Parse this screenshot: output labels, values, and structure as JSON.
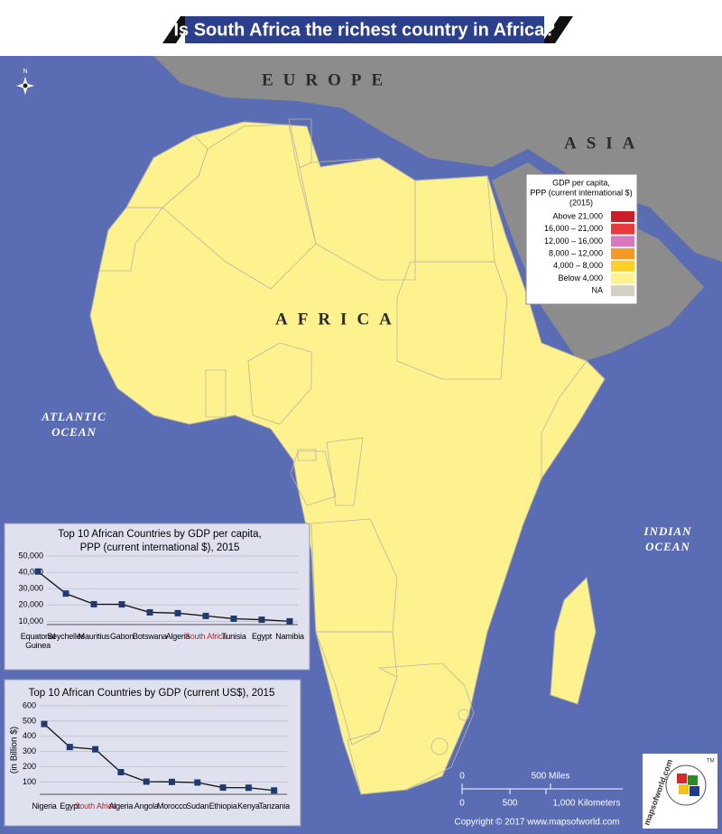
{
  "header": {
    "title": "Is South Africa the richest country in Africa?"
  },
  "map": {
    "labels": {
      "europe": "EUROPE",
      "asia": "ASIA",
      "africa": "AFRICA",
      "atlantic": [
        "ATLANTIC",
        "OCEAN"
      ],
      "indian": [
        "INDIAN",
        "OCEAN"
      ]
    },
    "compass": "N",
    "legend": {
      "title": [
        "GDP per capita,",
        "PPP (current international $)",
        "(2015)"
      ],
      "items": [
        {
          "label": "Above 21,000",
          "color": "#c8202a"
        },
        {
          "label": "16,000 – 21,000",
          "color": "#e83a3c"
        },
        {
          "label": "12,000 – 16,000",
          "color": "#d978c0"
        },
        {
          "label": "8,000 – 12,000",
          "color": "#f39a26"
        },
        {
          "label": "4,000 – 8,000",
          "color": "#fcd22a"
        },
        {
          "label": "Below 4,000",
          "color": "#fdf28e"
        },
        {
          "label": "NA",
          "color": "#d3d1c3"
        }
      ]
    },
    "scale": {
      "miles_zero": "0",
      "miles": "500 Miles",
      "km_zero": "0",
      "km_mid": "500",
      "km": "1,000 Kilometers"
    }
  },
  "chart_data": [
    {
      "type": "line",
      "title": [
        "Top 10 African Countries by GDP per capita,",
        "PPP (current international $), 2015"
      ],
      "categories": [
        "Equatorial Guinea",
        "Seychelles",
        "Mauritius",
        "Gabon",
        "Botswana",
        "Algeria",
        "South Africa",
        "Tunisia",
        "Egypt",
        "Namibia"
      ],
      "values": [
        40500,
        27000,
        20500,
        20400,
        15500,
        15000,
        13300,
        11600,
        11000,
        10000
      ],
      "color": "#1f3a6e",
      "line_color": "#111111",
      "highlight": {
        "index": 6,
        "color": "#c0272d"
      },
      "ylim": [
        8000,
        50000
      ],
      "yticks": [
        {
          "value": 10000,
          "label": "10,000"
        },
        {
          "value": 20000,
          "label": "20,000"
        },
        {
          "value": 30000,
          "label": "30,000"
        },
        {
          "value": 40000,
          "label": "40,000"
        },
        {
          "value": 50000,
          "label": "50,000"
        }
      ],
      "grid": true
    },
    {
      "type": "line",
      "title": [
        "Top 10 African Countries by GDP (current US$), 2015"
      ],
      "y_label": "(in Billion $)",
      "categories": [
        "Nigeria",
        "Egypt",
        "South Africa",
        "Algeria",
        "Angola",
        "Morocco",
        "Sudan",
        "Ethiopia",
        "Kenya",
        "Tanzania"
      ],
      "values": [
        481,
        330,
        315,
        165,
        103,
        101,
        97,
        64,
        63,
        45
      ],
      "color": "#1f3a6e",
      "line_color": "#111111",
      "highlight": {
        "index": 2,
        "color": "#c0272d"
      },
      "ylim": [
        20,
        600
      ],
      "yticks": [
        100,
        200,
        300,
        400,
        500,
        600
      ],
      "grid": true
    }
  ],
  "footer": {
    "copyright": "Copyright © 2017  www.mapsofworld.com",
    "logo": "mapsofworld.com",
    "tm": "TM"
  }
}
